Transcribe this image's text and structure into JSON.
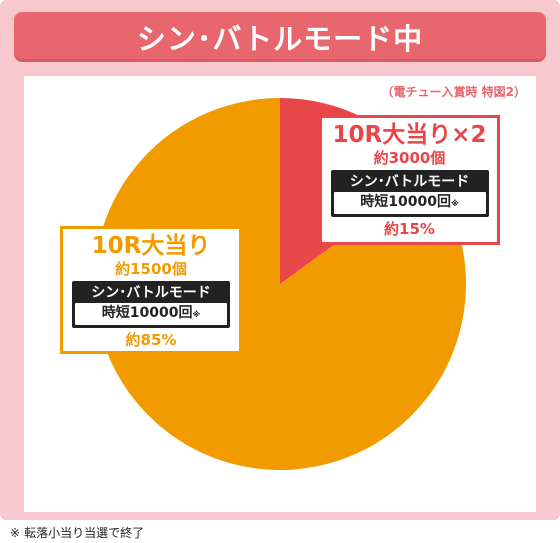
{
  "title": "シン･バトルモード中",
  "source_note": "（電チュー入賞時 特図2）",
  "colors": {
    "frame": "#f7c9cf",
    "title_bar": "#e8666e",
    "minor_slice": "#e8474a",
    "major_slice": "#f29b00"
  },
  "chart_data": {
    "type": "pie",
    "slices": [
      {
        "label": "10R大当り×2",
        "count_text": "約3000個",
        "mode": "シン･バトルモード",
        "jitan": "時短10000回",
        "ratio_text": "約15%",
        "value": 15
      },
      {
        "label": "10R大当り",
        "count_text": "約1500個",
        "mode": "シン･バトルモード",
        "jitan": "時短10000回",
        "ratio_text": "約85%",
        "value": 85
      }
    ]
  },
  "note_mark": "※",
  "footnote": "転落小当り当選で終了"
}
